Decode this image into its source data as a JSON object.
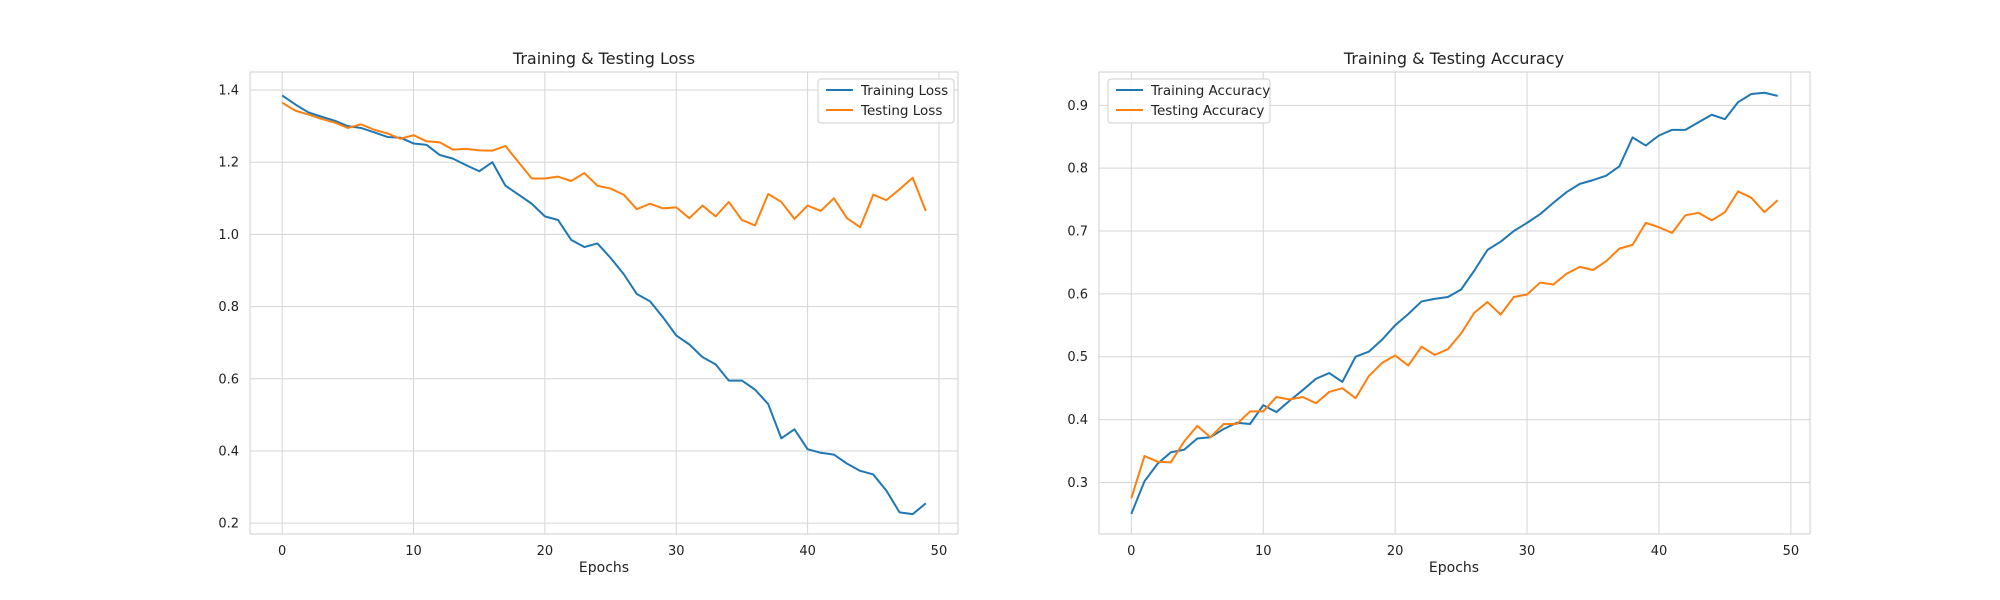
{
  "colors": {
    "blue": "#1f77b4",
    "orange": "#ff7f0e",
    "grid": "#d5d5d5",
    "spine": "#cfcfcf"
  },
  "chart_data": [
    {
      "type": "line",
      "title": "Training & Testing Loss",
      "xlabel": "Epochs",
      "ylabel": "",
      "xlim": [
        -2.45,
        51.45
      ],
      "ylim": [
        0.17,
        1.45
      ],
      "xticks": [
        0,
        10,
        20,
        30,
        40,
        50
      ],
      "yticks": [
        0.2,
        0.4,
        0.6,
        0.8,
        1.0,
        1.2,
        1.4
      ],
      "grid": true,
      "legend_position": "top-right",
      "x": [
        0,
        1,
        2,
        3,
        4,
        5,
        6,
        7,
        8,
        9,
        10,
        11,
        12,
        13,
        14,
        15,
        16,
        17,
        18,
        19,
        20,
        21,
        22,
        23,
        24,
        25,
        26,
        27,
        28,
        29,
        30,
        31,
        32,
        33,
        34,
        35,
        36,
        37,
        38,
        39,
        40,
        41,
        42,
        43,
        44,
        45,
        46,
        47,
        48,
        49
      ],
      "series": [
        {
          "name": "Training Loss",
          "color": "#1f77b4",
          "values": [
            1.385,
            1.36,
            1.338,
            1.326,
            1.315,
            1.3,
            1.295,
            1.283,
            1.27,
            1.268,
            1.252,
            1.248,
            1.22,
            1.21,
            1.192,
            1.175,
            1.2,
            1.135,
            1.11,
            1.085,
            1.05,
            1.04,
            0.985,
            0.965,
            0.975,
            0.935,
            0.89,
            0.835,
            0.815,
            0.77,
            0.72,
            0.695,
            0.66,
            0.64,
            0.595,
            0.595,
            0.57,
            0.53,
            0.435,
            0.46,
            0.405,
            0.395,
            0.39,
            0.365,
            0.345,
            0.335,
            0.29,
            0.23,
            0.225,
            0.255
          ]
        },
        {
          "name": "Testing Loss",
          "color": "#ff7f0e",
          "values": [
            1.365,
            1.343,
            1.332,
            1.32,
            1.31,
            1.295,
            1.305,
            1.29,
            1.28,
            1.265,
            1.275,
            1.258,
            1.255,
            1.235,
            1.237,
            1.233,
            1.232,
            1.245,
            1.2,
            1.155,
            1.155,
            1.16,
            1.148,
            1.17,
            1.135,
            1.127,
            1.11,
            1.07,
            1.085,
            1.072,
            1.075,
            1.045,
            1.08,
            1.05,
            1.09,
            1.04,
            1.025,
            1.112,
            1.09,
            1.043,
            1.08,
            1.065,
            1.1,
            1.045,
            1.02,
            1.11,
            1.095,
            1.125,
            1.157,
            1.065
          ]
        }
      ]
    },
    {
      "type": "line",
      "title": "Training & Testing Accuracy",
      "xlabel": "Epochs",
      "ylabel": "",
      "xlim": [
        -2.45,
        51.45
      ],
      "ylim": [
        0.218,
        0.953
      ],
      "xticks": [
        0,
        10,
        20,
        30,
        40,
        50
      ],
      "yticks": [
        0.3,
        0.4,
        0.5,
        0.6,
        0.7,
        0.8,
        0.9
      ],
      "grid": true,
      "legend_position": "top-left",
      "x": [
        0,
        1,
        2,
        3,
        4,
        5,
        6,
        7,
        8,
        9,
        10,
        11,
        12,
        13,
        14,
        15,
        16,
        17,
        18,
        19,
        20,
        21,
        22,
        23,
        24,
        25,
        26,
        27,
        28,
        29,
        30,
        31,
        32,
        33,
        34,
        35,
        36,
        37,
        38,
        39,
        40,
        41,
        42,
        43,
        44,
        45,
        46,
        47,
        48,
        49
      ],
      "series": [
        {
          "name": "Training Accuracy",
          "color": "#1f77b4",
          "values": [
            0.25,
            0.302,
            0.33,
            0.348,
            0.352,
            0.37,
            0.372,
            0.385,
            0.395,
            0.393,
            0.423,
            0.412,
            0.43,
            0.447,
            0.465,
            0.474,
            0.46,
            0.5,
            0.508,
            0.527,
            0.55,
            0.568,
            0.588,
            0.592,
            0.595,
            0.607,
            0.637,
            0.67,
            0.683,
            0.7,
            0.713,
            0.727,
            0.745,
            0.762,
            0.775,
            0.781,
            0.788,
            0.803,
            0.849,
            0.836,
            0.852,
            0.861,
            0.861,
            0.873,
            0.885,
            0.878,
            0.905,
            0.918,
            0.92,
            0.915
          ]
        },
        {
          "name": "Testing Accuracy",
          "color": "#ff7f0e",
          "values": [
            0.275,
            0.342,
            0.333,
            0.332,
            0.365,
            0.39,
            0.372,
            0.393,
            0.393,
            0.413,
            0.413,
            0.436,
            0.432,
            0.436,
            0.426,
            0.444,
            0.45,
            0.434,
            0.469,
            0.49,
            0.502,
            0.486,
            0.516,
            0.503,
            0.512,
            0.537,
            0.57,
            0.587,
            0.567,
            0.595,
            0.599,
            0.618,
            0.615,
            0.632,
            0.643,
            0.638,
            0.652,
            0.672,
            0.678,
            0.713,
            0.706,
            0.697,
            0.725,
            0.729,
            0.717,
            0.73,
            0.763,
            0.753,
            0.73,
            0.749
          ]
        }
      ]
    }
  ]
}
